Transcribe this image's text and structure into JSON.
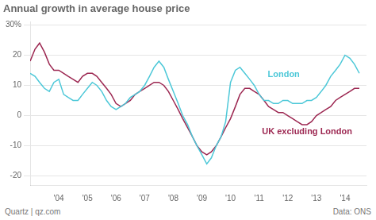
{
  "chart_data": {
    "type": "line",
    "title": "Annual growth in average house price",
    "footer": [
      "Quartz | qz.com",
      "Data: ONS"
    ],
    "x": [
      2003.0,
      2003.17,
      2003.33,
      2003.5,
      2003.67,
      2003.83,
      2004.0,
      2004.17,
      2004.33,
      2004.5,
      2004.67,
      2004.83,
      2005.0,
      2005.17,
      2005.33,
      2005.5,
      2005.67,
      2005.83,
      2006.0,
      2006.17,
      2006.33,
      2006.5,
      2006.67,
      2006.83,
      2007.0,
      2007.17,
      2007.33,
      2007.5,
      2007.67,
      2007.83,
      2008.0,
      2008.17,
      2008.33,
      2008.5,
      2008.67,
      2008.83,
      2009.0,
      2009.17,
      2009.33,
      2009.5,
      2009.67,
      2009.83,
      2010.0,
      2010.17,
      2010.33,
      2010.5,
      2010.67,
      2010.83,
      2011.0,
      2011.17,
      2011.33,
      2011.5,
      2011.67,
      2011.83,
      2012.0,
      2012.17,
      2012.33,
      2012.5,
      2012.67,
      2012.83,
      2013.0,
      2013.17,
      2013.33,
      2013.5,
      2013.67,
      2013.83,
      2014.0,
      2014.17,
      2014.33,
      2014.5
    ],
    "series": [
      {
        "name": "London",
        "color": "#4dc8d8",
        "values": [
          14,
          13,
          11,
          9,
          8,
          11,
          12,
          7,
          6,
          5,
          5,
          7,
          9,
          11,
          10,
          8,
          5,
          3,
          2,
          3,
          4,
          6,
          7,
          8,
          10,
          13,
          16,
          18,
          16,
          12,
          8,
          4,
          0,
          -3,
          -7,
          -10,
          -13,
          -16,
          -14,
          -10,
          -7,
          -2,
          11,
          15,
          16,
          14,
          12,
          10,
          7,
          5,
          5,
          4,
          4,
          5,
          5,
          4,
          4,
          4,
          5,
          5,
          6,
          8,
          10,
          13,
          15,
          17,
          20,
          19,
          17,
          14
        ]
      },
      {
        "name": "UK excluding London",
        "color": "#9c2751",
        "values": [
          18,
          22,
          24,
          21,
          17,
          15,
          15,
          14,
          13,
          12,
          11,
          13,
          14,
          14,
          13,
          11,
          9,
          7,
          4,
          3,
          4,
          5,
          7,
          8,
          9,
          10,
          11,
          11,
          10,
          8,
          5,
          2,
          -1,
          -4,
          -7,
          -10,
          -12,
          -13,
          -12,
          -10,
          -7,
          -4,
          -1,
          3,
          7,
          9,
          9,
          8,
          7,
          5,
          3,
          2,
          1,
          1,
          0,
          -1,
          -2,
          -3,
          -3,
          -2,
          0,
          1,
          2,
          3,
          5,
          6,
          7,
          8,
          9,
          9
        ]
      }
    ],
    "annotations": [
      {
        "text": "London",
        "x": 2011.3,
        "y": 13.5,
        "color": "#4dc8d8"
      },
      {
        "text": "UK excluding London",
        "x": 2011.1,
        "y": -5.5,
        "color": "#9c2751"
      }
    ],
    "xlim": [
      2003.0,
      2014.75
    ],
    "xticks": [
      {
        "value": 2004,
        "label": "'04"
      },
      {
        "value": 2005,
        "label": "'05"
      },
      {
        "value": 2006,
        "label": "'06"
      },
      {
        "value": 2007,
        "label": "'07"
      },
      {
        "value": 2008,
        "label": "'08"
      },
      {
        "value": 2009,
        "label": "'09"
      },
      {
        "value": 2010,
        "label": "'10"
      },
      {
        "value": 2011,
        "label": "'11"
      },
      {
        "value": 2012,
        "label": "'12"
      },
      {
        "value": 2013,
        "label": "'13"
      },
      {
        "value": 2014,
        "label": "'14"
      }
    ],
    "ylim": [
      -23,
      31
    ],
    "yticks": [
      -20,
      -10,
      0,
      10,
      20,
      {
        "value": 30,
        "label": "30%"
      }
    ],
    "grid": true,
    "legend": false
  }
}
